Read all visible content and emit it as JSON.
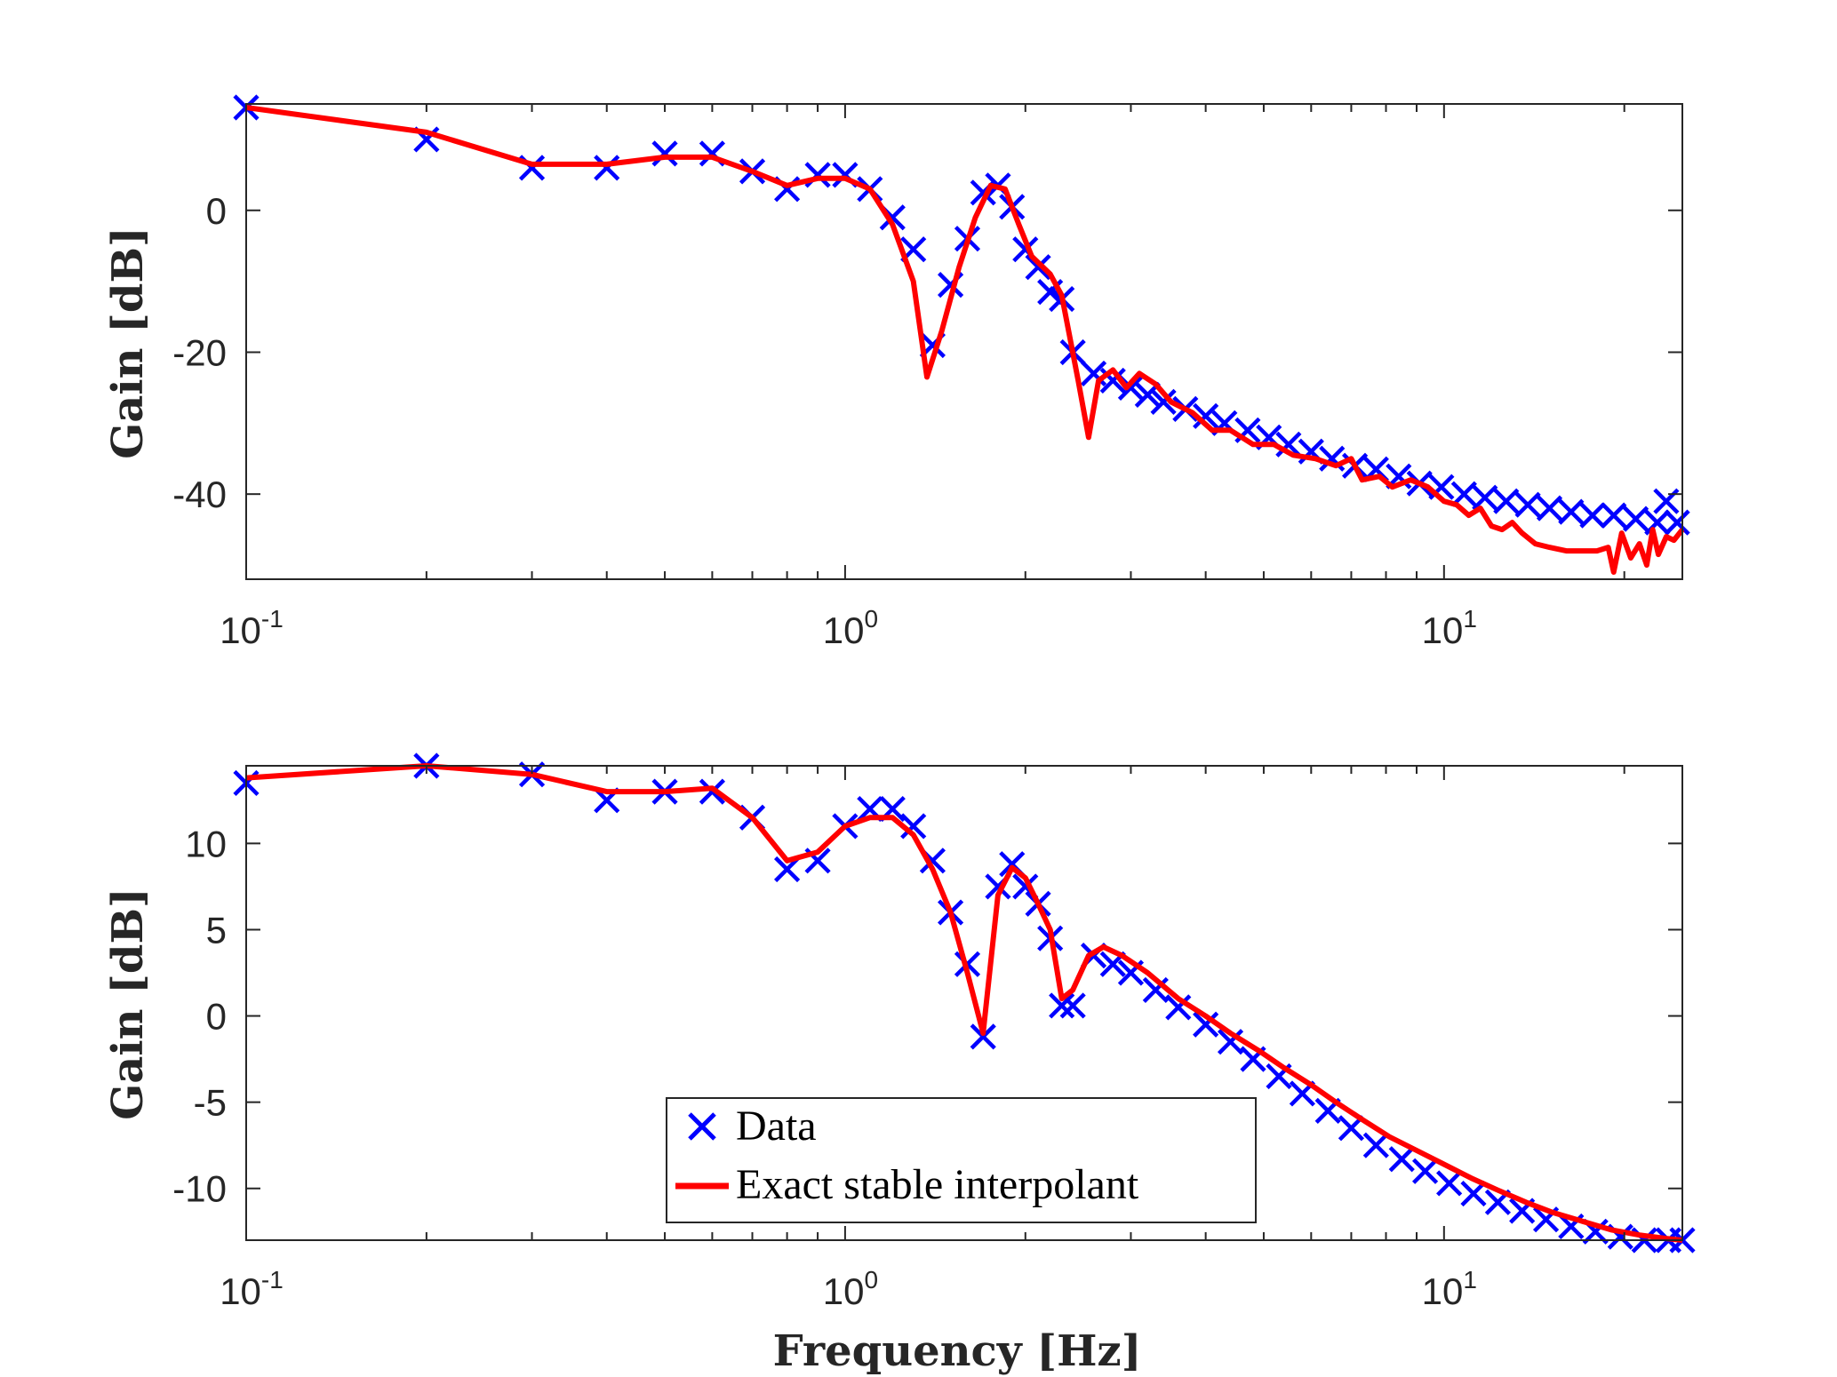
{
  "colors": {
    "data": "#0000ff",
    "fit": "#ff0000",
    "axes": "#262626",
    "background": "#ffffff"
  },
  "legend": {
    "placement": "lower-center of bottom panel",
    "entries": [
      "Data",
      "Exact stable interpolant"
    ]
  },
  "chart_data": [
    {
      "type": "line",
      "xscale": "log",
      "xlim": [
        0.1,
        25
      ],
      "ylim": [
        -52,
        15
      ],
      "yticks": [
        0,
        -20,
        -40
      ],
      "xticks": [
        0.1,
        1,
        10
      ],
      "xticklabels": [
        {
          "base": "10",
          "exp": "-1"
        },
        {
          "base": "10",
          "exp": "0"
        },
        {
          "base": "10",
          "exp": "1"
        }
      ],
      "xlabel": "",
      "ylabel": "Gain [dB]",
      "grid": false,
      "series": [
        {
          "name": "Data",
          "marker": "x",
          "points": [
            [
              0.1,
              14.5
            ],
            [
              0.2,
              10
            ],
            [
              0.3,
              6
            ],
            [
              0.4,
              6
            ],
            [
              0.5,
              8
            ],
            [
              0.6,
              8
            ],
            [
              0.7,
              5.5
            ],
            [
              0.8,
              3
            ],
            [
              0.9,
              5
            ],
            [
              1.0,
              5
            ],
            [
              1.1,
              3
            ],
            [
              1.2,
              -1
            ],
            [
              1.3,
              -5.5
            ],
            [
              1.4,
              -19
            ],
            [
              1.5,
              -10.5
            ],
            [
              1.6,
              -4
            ],
            [
              1.7,
              2.5
            ],
            [
              1.8,
              3.5
            ],
            [
              1.9,
              0.5
            ],
            [
              2.0,
              -5.5
            ],
            [
              2.1,
              -8
            ],
            [
              2.2,
              -11.5
            ],
            [
              2.3,
              -12.5
            ],
            [
              2.4,
              -20
            ],
            [
              2.6,
              -23
            ],
            [
              2.8,
              -24
            ],
            [
              3.0,
              -25
            ],
            [
              3.2,
              -26
            ],
            [
              3.4,
              -27
            ],
            [
              3.7,
              -28
            ],
            [
              4.0,
              -29
            ],
            [
              4.3,
              -30
            ],
            [
              4.7,
              -31
            ],
            [
              5.1,
              -32
            ],
            [
              5.5,
              -33
            ],
            [
              6.0,
              -34
            ],
            [
              6.5,
              -35
            ],
            [
              7.1,
              -36
            ],
            [
              7.7,
              -36.5
            ],
            [
              8.4,
              -37.5
            ],
            [
              9.1,
              -38.5
            ],
            [
              9.9,
              -39
            ],
            [
              10.8,
              -40
            ],
            [
              11.7,
              -40.5
            ],
            [
              12.7,
              -41
            ],
            [
              13.8,
              -41.5
            ],
            [
              15.0,
              -42
            ],
            [
              16.3,
              -42.5
            ],
            [
              17.7,
              -43
            ],
            [
              19.2,
              -43
            ],
            [
              20.9,
              -43.5
            ],
            [
              22.7,
              -44
            ],
            [
              23.5,
              -41
            ],
            [
              24.5,
              -44
            ]
          ]
        },
        {
          "name": "Exact stable interpolant",
          "points": [
            [
              0.1,
              14.5
            ],
            [
              0.2,
              11
            ],
            [
              0.3,
              6.5
            ],
            [
              0.4,
              6.5
            ],
            [
              0.5,
              7.5
            ],
            [
              0.6,
              7.5
            ],
            [
              0.7,
              5.5
            ],
            [
              0.8,
              3.5
            ],
            [
              0.9,
              4.5
            ],
            [
              1.0,
              4.5
            ],
            [
              1.1,
              3
            ],
            [
              1.2,
              -2
            ],
            [
              1.3,
              -10
            ],
            [
              1.37,
              -23.5
            ],
            [
              1.45,
              -17
            ],
            [
              1.55,
              -8
            ],
            [
              1.65,
              -1
            ],
            [
              1.75,
              3.5
            ],
            [
              1.85,
              3
            ],
            [
              1.95,
              -2
            ],
            [
              2.05,
              -6.5
            ],
            [
              2.2,
              -9
            ],
            [
              2.3,
              -12
            ],
            [
              2.45,
              -24
            ],
            [
              2.55,
              -32
            ],
            [
              2.65,
              -24
            ],
            [
              2.8,
              -22.5
            ],
            [
              2.95,
              -25
            ],
            [
              3.1,
              -23
            ],
            [
              3.3,
              -24.5
            ],
            [
              3.5,
              -27
            ],
            [
              3.8,
              -28.5
            ],
            [
              4.1,
              -31
            ],
            [
              4.4,
              -31
            ],
            [
              4.8,
              -33
            ],
            [
              5.2,
              -33
            ],
            [
              5.6,
              -34.5
            ],
            [
              6.1,
              -35
            ],
            [
              6.6,
              -36
            ],
            [
              7.0,
              -35
            ],
            [
              7.3,
              -38
            ],
            [
              7.8,
              -37.5
            ],
            [
              8.2,
              -39
            ],
            [
              8.8,
              -38
            ],
            [
              9.4,
              -39
            ],
            [
              10.0,
              -41
            ],
            [
              10.5,
              -41.5
            ],
            [
              11.0,
              -43
            ],
            [
              11.5,
              -42
            ],
            [
              12.0,
              -44.5
            ],
            [
              12.5,
              -45
            ],
            [
              13.0,
              -44
            ],
            [
              13.5,
              -45.5
            ],
            [
              14.2,
              -47
            ],
            [
              15.0,
              -47.5
            ],
            [
              16.0,
              -48
            ],
            [
              17.0,
              -48
            ],
            [
              18.0,
              -48
            ],
            [
              18.8,
              -47.5
            ],
            [
              19.2,
              -51
            ],
            [
              19.8,
              -45.5
            ],
            [
              20.5,
              -49
            ],
            [
              21.2,
              -47
            ],
            [
              21.8,
              -50
            ],
            [
              22.3,
              -45
            ],
            [
              22.8,
              -48.5
            ],
            [
              23.5,
              -46
            ],
            [
              24.2,
              -46.5
            ],
            [
              25.0,
              -45
            ]
          ]
        }
      ]
    },
    {
      "type": "line",
      "xscale": "log",
      "xlim": [
        0.1,
        25
      ],
      "ylim": [
        -13,
        14.5
      ],
      "yticks": [
        10,
        5,
        0,
        -5,
        -10
      ],
      "xticks": [
        0.1,
        1,
        10
      ],
      "xticklabels": [
        {
          "base": "10",
          "exp": "-1"
        },
        {
          "base": "10",
          "exp": "0"
        },
        {
          "base": "10",
          "exp": "1"
        }
      ],
      "xlabel": "Frequency [Hz]",
      "ylabel": "Gain [dB]",
      "grid": false,
      "series": [
        {
          "name": "Data",
          "marker": "x",
          "points": [
            [
              0.1,
              13.5
            ],
            [
              0.2,
              14.5
            ],
            [
              0.3,
              14
            ],
            [
              0.4,
              12.5
            ],
            [
              0.5,
              13
            ],
            [
              0.6,
              13
            ],
            [
              0.7,
              11.5
            ],
            [
              0.8,
              8.5
            ],
            [
              0.9,
              9
            ],
            [
              1.0,
              11
            ],
            [
              1.1,
              12
            ],
            [
              1.2,
              12
            ],
            [
              1.3,
              11
            ],
            [
              1.4,
              9
            ],
            [
              1.5,
              6
            ],
            [
              1.6,
              3
            ],
            [
              1.7,
              -1.2
            ],
            [
              1.8,
              7.5
            ],
            [
              1.9,
              8.8
            ],
            [
              2.0,
              7.5
            ],
            [
              2.1,
              6.5
            ],
            [
              2.2,
              4.5
            ],
            [
              2.3,
              0.6
            ],
            [
              2.4,
              0.6
            ],
            [
              2.6,
              3.5
            ],
            [
              2.8,
              3
            ],
            [
              3.0,
              2.5
            ],
            [
              3.3,
              1.5
            ],
            [
              3.6,
              0.5
            ],
            [
              4.0,
              -0.5
            ],
            [
              4.4,
              -1.5
            ],
            [
              4.8,
              -2.5
            ],
            [
              5.3,
              -3.5
            ],
            [
              5.8,
              -4.5
            ],
            [
              6.4,
              -5.5
            ],
            [
              7.0,
              -6.5
            ],
            [
              7.7,
              -7.5
            ],
            [
              8.5,
              -8.3
            ],
            [
              9.3,
              -9
            ],
            [
              10.2,
              -9.7
            ],
            [
              11.2,
              -10.3
            ],
            [
              12.3,
              -10.8
            ],
            [
              13.5,
              -11.3
            ],
            [
              14.8,
              -11.8
            ],
            [
              16.3,
              -12.2
            ],
            [
              17.9,
              -12.5
            ],
            [
              19.7,
              -12.8
            ],
            [
              21.6,
              -13
            ],
            [
              23.7,
              -13
            ],
            [
              25.0,
              -13
            ]
          ]
        },
        {
          "name": "Exact stable interpolant",
          "points": [
            [
              0.1,
              13.8
            ],
            [
              0.2,
              14.5
            ],
            [
              0.3,
              14
            ],
            [
              0.4,
              13
            ],
            [
              0.5,
              13
            ],
            [
              0.6,
              13.2
            ],
            [
              0.7,
              11.5
            ],
            [
              0.8,
              9
            ],
            [
              0.9,
              9.5
            ],
            [
              1.0,
              11
            ],
            [
              1.1,
              11.5
            ],
            [
              1.2,
              11.5
            ],
            [
              1.3,
              10.5
            ],
            [
              1.4,
              8.5
            ],
            [
              1.5,
              6
            ],
            [
              1.6,
              2.5
            ],
            [
              1.7,
              -1
            ],
            [
              1.8,
              7
            ],
            [
              1.9,
              8.6
            ],
            [
              2.0,
              8
            ],
            [
              2.1,
              6.5
            ],
            [
              2.2,
              5
            ],
            [
              2.3,
              1
            ],
            [
              2.4,
              1.5
            ],
            [
              2.55,
              3.5
            ],
            [
              2.7,
              4
            ],
            [
              2.9,
              3.5
            ],
            [
              3.2,
              2.5
            ],
            [
              3.6,
              1
            ],
            [
              4.0,
              0
            ],
            [
              4.4,
              -1
            ],
            [
              4.9,
              -2
            ],
            [
              5.4,
              -3
            ],
            [
              6.0,
              -4
            ],
            [
              6.6,
              -5
            ],
            [
              7.3,
              -6
            ],
            [
              8.1,
              -7
            ],
            [
              9.0,
              -7.8
            ],
            [
              10.0,
              -8.6
            ],
            [
              11.1,
              -9.4
            ],
            [
              12.3,
              -10.1
            ],
            [
              13.7,
              -10.8
            ],
            [
              15.2,
              -11.4
            ],
            [
              17.0,
              -11.9
            ],
            [
              19.0,
              -12.4
            ],
            [
              21.2,
              -12.7
            ],
            [
              23.5,
              -12.9
            ],
            [
              25.0,
              -13
            ]
          ]
        }
      ]
    }
  ]
}
